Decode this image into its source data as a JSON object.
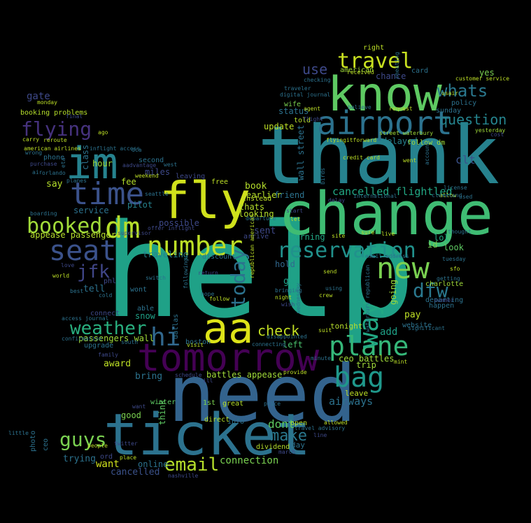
{
  "words": [
    {
      "text": "help",
      "color": "#1fa187"
    },
    {
      "text": "thank",
      "color": "#26828e"
    },
    {
      "text": "need",
      "color": "#33638d"
    },
    {
      "text": "change",
      "color": "#3fbc73"
    },
    {
      "text": "ticket",
      "color": "#2c728e"
    },
    {
      "text": "fly",
      "color": "#d0e11c"
    },
    {
      "text": "know",
      "color": "#5ec962"
    },
    {
      "text": "tomorrow",
      "color": "#440154"
    },
    {
      "text": "im",
      "color": "#26828e"
    },
    {
      "text": "aa",
      "color": "#dde318"
    },
    {
      "text": "airport",
      "color": "#2c728e"
    },
    {
      "text": "time",
      "color": "#3b528b"
    },
    {
      "text": "plane",
      "color": "#35b779"
    },
    {
      "text": "new",
      "color": "#7ad151"
    },
    {
      "text": "number",
      "color": "#bddf26"
    },
    {
      "text": "dm",
      "color": "#b5de2b"
    },
    {
      "text": "seat",
      "color": "#3b528b"
    },
    {
      "text": "bag",
      "color": "#1f988b"
    },
    {
      "text": "reservation",
      "color": "#21918c"
    },
    {
      "text": "travel",
      "color": "#c8e020"
    },
    {
      "text": "way",
      "color": "#22a884"
    },
    {
      "text": "booked",
      "color": "#a0da39"
    },
    {
      "text": "flying",
      "color": "#46327e"
    },
    {
      "text": "weather",
      "color": "#29af7f"
    },
    {
      "text": "email",
      "color": "#b5de2b"
    },
    {
      "text": "guys",
      "color": "#7ad151"
    },
    {
      "text": "hi",
      "color": "#31688e"
    },
    {
      "text": "today",
      "color": "#2c728e"
    },
    {
      "text": "dfw",
      "color": "#2a788e"
    },
    {
      "text": "whats",
      "color": "#2a788e"
    },
    {
      "text": "question",
      "color": "#25848e"
    },
    {
      "text": "jfk",
      "color": "#404688"
    },
    {
      "text": "check",
      "color": "#c2df23"
    },
    {
      "text": "make",
      "color": "#2a788e"
    },
    {
      "text": "use",
      "color": "#3e4989"
    },
    {
      "text": "cancelled flightled",
      "color": "#22a884"
    },
    {
      "text": "airways",
      "color": "#2c728e"
    },
    {
      "text": "clt",
      "color": "#3b528b"
    },
    {
      "text": "dont",
      "color": "#5ec962"
    },
    {
      "text": "connection",
      "color": "#7ad151"
    },
    {
      "text": "passengers wall",
      "color": "#a0da39"
    },
    {
      "text": "hold",
      "color": "#31688e"
    },
    {
      "text": "gate",
      "color": "#3e4989"
    },
    {
      "text": "book",
      "color": "#b5de2b"
    },
    {
      "text": "sent",
      "color": "#3e4989"
    },
    {
      "text": "morning",
      "color": "#22a884"
    },
    {
      "text": "got",
      "color": "#1fa187"
    },
    {
      "text": "say",
      "color": "#b5de2b"
    },
    {
      "text": "want",
      "color": "#d0e11c"
    },
    {
      "text": "trying",
      "color": "#2c728e"
    },
    {
      "text": "cancelled",
      "color": "#3b528b"
    },
    {
      "text": "online",
      "color": "#2c728e"
    },
    {
      "text": "bring",
      "color": "#2c728e"
    },
    {
      "text": "award",
      "color": "#bddf26"
    },
    {
      "text": "snow",
      "color": "#1fa187"
    },
    {
      "text": "tell",
      "color": "#2c728e"
    },
    {
      "text": "pay",
      "color": "#bddf26"
    },
    {
      "text": "add",
      "color": "#1fa187"
    },
    {
      "text": "hour",
      "color": "#9fda3a"
    },
    {
      "text": "fee",
      "color": "#b5de2b"
    },
    {
      "text": "service",
      "color": "#2c728e"
    },
    {
      "text": "miles",
      "color": "#3e4989"
    },
    {
      "text": "traveling",
      "color": "#26828e"
    },
    {
      "text": "look",
      "color": "#5ec962"
    },
    {
      "text": "left",
      "color": "#4ac16d"
    },
    {
      "text": "ceo battles",
      "color": "#a0da39"
    },
    {
      "text": "battles appease",
      "color": "#a0da39"
    },
    {
      "text": "appease passengers",
      "color": "#b5de2b"
    },
    {
      "text": "leave",
      "color": "#bddf26"
    },
    {
      "text": "lol",
      "color": "#22a884"
    },
    {
      "text": "id",
      "color": "#7ad151"
    },
    {
      "text": "good",
      "color": "#7ad151"
    },
    {
      "text": "day",
      "color": "#2c728e"
    },
    {
      "text": "yes",
      "color": "#7ad151"
    },
    {
      "text": "tonight",
      "color": "#b5de2b"
    },
    {
      "text": "update",
      "color": "#bddf26"
    },
    {
      "text": "looking",
      "color": "#b5de2b"
    },
    {
      "text": "trip",
      "color": "#9fda3a"
    },
    {
      "text": "friend",
      "color": "#2c728e"
    },
    {
      "text": "possible",
      "color": "#3e4989"
    },
    {
      "text": "status",
      "color": "#2c728e"
    },
    {
      "text": "wall street",
      "color": "#2c728e"
    },
    {
      "text": "thats",
      "color": "#b5de2b"
    },
    {
      "text": "pilot",
      "color": "#26828e"
    },
    {
      "text": "class",
      "color": "#2c728e"
    },
    {
      "text": "delayed",
      "color": "#26828e"
    },
    {
      "text": "think",
      "color": "#5ec962"
    },
    {
      "text": "going",
      "color": "#9fda3a"
    },
    {
      "text": "chance",
      "color": "#3e4989"
    },
    {
      "text": "earlier",
      "color": "#b5de2b"
    },
    {
      "text": "american",
      "color": "#9fda3a"
    },
    {
      "text": "booking problems",
      "color": "#b5de2b"
    },
    {
      "text": "phone",
      "color": "#2c728e"
    },
    {
      "text": "second",
      "color": "#2c728e"
    },
    {
      "text": "leaving",
      "color": "#3e4989"
    },
    {
      "text": "free",
      "color": "#bddf26"
    },
    {
      "text": "instead",
      "color": "#bddf26"
    },
    {
      "text": "arrive",
      "color": "#3e4989"
    },
    {
      "text": "website",
      "color": "#2c728e"
    },
    {
      "text": "departing",
      "color": "#2c728e"
    },
    {
      "text": "charlotte",
      "color": "#9fda3a"
    },
    {
      "text": "happen",
      "color": "#2c728e"
    },
    {
      "text": "policy",
      "color": "#2c728e"
    },
    {
      "text": "sunday",
      "color": "#2c728e"
    },
    {
      "text": "wife",
      "color": "#7ad151"
    },
    {
      "text": "told",
      "color": "#b5de2b"
    },
    {
      "text": "follow dm",
      "color": "#9fda3a"
    },
    {
      "text": "card",
      "color": "#2c728e"
    },
    {
      "text": "right",
      "color": "#bddf26"
    },
    {
      "text": "able",
      "color": "#2c728e"
    },
    {
      "text": "wont",
      "color": "#2c728e"
    },
    {
      "text": "phl",
      "color": "#3e4989"
    },
    {
      "text": "dallas",
      "color": "#2c728e"
    },
    {
      "text": "upgrade",
      "color": "#2c728e"
    },
    {
      "text": "info",
      "color": "#2c728e"
    },
    {
      "text": "open",
      "color": "#b5de2b"
    },
    {
      "text": "dividend",
      "color": "#b5de2b"
    },
    {
      "text": "ord",
      "color": "#3e4989"
    },
    {
      "text": "winter",
      "color": "#5ec962"
    },
    {
      "text": "1st",
      "color": "#7ad151"
    },
    {
      "text": "discount",
      "color": "#2c728e"
    },
    {
      "text": "connect",
      "color": "#3e4989"
    },
    {
      "text": "boston",
      "color": "#2c728e"
    },
    {
      "text": "direct",
      "color": "#b5de2b"
    },
    {
      "text": "ceo",
      "color": "#2c728e"
    },
    {
      "text": "photo",
      "color": "#2c728e"
    },
    {
      "text": "great",
      "color": "#b5de2b"
    },
    {
      "text": "yesterday",
      "color": "#9fda3a"
    },
    {
      "text": "customer service",
      "color": "#bddf26"
    },
    {
      "text": "request",
      "color": "#bddf26"
    },
    {
      "text": "believe",
      "color": "#2c728e"
    },
    {
      "text": "street waterbury",
      "color": "#9fda3a"
    },
    {
      "text": "flyingitforward",
      "color": "#bddf26"
    },
    {
      "text": "credit card",
      "color": "#bddf26"
    },
    {
      "text": "sure",
      "color": "#b5de2b"
    },
    {
      "text": "site",
      "color": "#bddf26"
    },
    {
      "text": "nashville",
      "color": "#3e4989"
    },
    {
      "text": "twitter",
      "color": "#3e4989"
    },
    {
      "text": "people",
      "color": "#bddf26"
    },
    {
      "text": "march",
      "color": "#3e4989"
    },
    {
      "text": "line",
      "color": "#3e4989"
    },
    {
      "text": "allowed",
      "color": "#bddf26"
    },
    {
      "text": "schedule",
      "color": "#3e4989"
    },
    {
      "text": "visit",
      "color": "#bddf26"
    },
    {
      "text": "provide",
      "color": "#bddf26"
    },
    {
      "text": "used",
      "color": "#2c728e"
    },
    {
      "text": "allow",
      "color": "#bddf26"
    },
    {
      "text": "cost",
      "color": "#3e4989"
    },
    {
      "text": "thought",
      "color": "#2c728e"
    },
    {
      "text": "international",
      "color": "#2c728e"
    },
    {
      "text": "email address",
      "color": "#2c728e"
    },
    {
      "text": "significant",
      "color": "#2c728e"
    },
    {
      "text": "american airlines",
      "color": "#bddf26"
    },
    {
      "text": "digital journal",
      "color": "#2c728e"
    },
    {
      "text": "traveler",
      "color": "#2c728e"
    },
    {
      "text": "agent",
      "color": "#bddf26"
    },
    {
      "text": "flight",
      "color": "#3e4989"
    },
    {
      "text": "checking",
      "color": "#2c728e"
    },
    {
      "text": "received",
      "color": "#bddf26"
    },
    {
      "text": "monday",
      "color": "#bddf26"
    },
    {
      "text": "reroute",
      "color": "#bddf26"
    },
    {
      "text": "carry",
      "color": "#bddf26"
    },
    {
      "text": "ago",
      "color": "#bddf26"
    },
    {
      "text": "final",
      "color": "#3e4989"
    },
    {
      "text": "world",
      "color": "#bddf26"
    },
    {
      "text": "confirmation",
      "color": "#2c728e"
    },
    {
      "text": "access journal",
      "color": "#2c728e"
    },
    {
      "text": "cold",
      "color": "#2c728e"
    },
    {
      "text": "south",
      "color": "#2c728e"
    },
    {
      "text": "family",
      "color": "#3e4989"
    },
    {
      "text": "want",
      "color": "#3e4989"
    },
    {
      "text": "place",
      "color": "#bddf26"
    },
    {
      "text": "minute",
      "color": "#2c728e"
    },
    {
      "text": "suit",
      "color": "#bddf26"
    },
    {
      "text": "wish",
      "color": "#3e4989"
    },
    {
      "text": "night",
      "color": "#bddf26"
    },
    {
      "text": "crew",
      "color": "#bddf26"
    },
    {
      "text": "send",
      "color": "#bddf26"
    },
    {
      "text": "using",
      "color": "#2c728e"
    },
    {
      "text": "hope",
      "color": "#2c728e"
    },
    {
      "text": "follow",
      "color": "#bddf26"
    },
    {
      "text": "bringing",
      "color": "#2c728e"
    },
    {
      "text": "disappointed",
      "color": "#2c728e"
    },
    {
      "text": "connecting",
      "color": "#2c728e"
    },
    {
      "text": "offer inflight",
      "color": "#3e4989"
    },
    {
      "text": "supervisor",
      "color": "#3e4989"
    },
    {
      "text": "start",
      "color": "#3e4989"
    },
    {
      "text": "let",
      "color": "#bddf26"
    },
    {
      "text": "sfo",
      "color": "#bddf26"
    },
    {
      "text": "getting",
      "color": "#2c728e"
    },
    {
      "text": "summer",
      "color": "#3e4989"
    },
    {
      "text": "mint",
      "color": "#bddf26"
    },
    {
      "text": "ill",
      "color": "#3e4989"
    },
    {
      "text": "little",
      "color": "#2c728e"
    },
    {
      "text": "travel advisory",
      "color": "#2c728e"
    },
    {
      "text": "price",
      "color": "#2c728e"
    },
    {
      "text": "boarding",
      "color": "#2c728e"
    },
    {
      "text": "inflight access",
      "color": "#2c728e"
    },
    {
      "text": "dca",
      "color": "#2c728e"
    },
    {
      "text": "aadvantage",
      "color": "#3e4989"
    },
    {
      "text": "west",
      "color": "#2c728e"
    },
    {
      "text": "weekend",
      "color": "#bddf26"
    },
    {
      "text": "departure",
      "color": "#2c728e"
    },
    {
      "text": "license",
      "color": "#2c728e"
    },
    {
      "text": "cleveland",
      "color": "#2c728e"
    },
    {
      "text": "account",
      "color": "#2c728e"
    },
    {
      "text": "went",
      "color": "#bddf26"
    },
    {
      "text": "live",
      "color": "#bddf26"
    },
    {
      "text": "republican american",
      "color": "#bddf26"
    },
    {
      "text": "waterbury republican",
      "color": "#2c728e"
    },
    {
      "text": "following",
      "color": "#2c728e"
    },
    {
      "text": "wednesday",
      "color": "#2c728e"
    },
    {
      "text": "delay",
      "color": "#3e4989"
    },
    {
      "text": "birds",
      "color": "#2c728e"
    },
    {
      "text": "purchase",
      "color": "#3e4989"
    },
    {
      "text": "orlando",
      "color": "#2c728e"
    },
    {
      "text": "wrong",
      "color": "#2c728e"
    },
    {
      "text": "air",
      "color": "#2c728e"
    },
    {
      "text": "cheating",
      "color": "#2c728e"
    },
    {
      "text": "switch",
      "color": "#2c728e"
    },
    {
      "text": "return",
      "color": "#3e4989"
    },
    {
      "text": "love",
      "color": "#3e4989"
    },
    {
      "text": "best",
      "color": "#2c728e"
    },
    {
      "text": "seattle",
      "color": "#2c728e"
    },
    {
      "text": "usair",
      "color": "#bddf26"
    },
    {
      "text": "tuesday",
      "color": "#2c728e"
    },
    {
      "text": "eta",
      "color": "#2c728e"
    },
    {
      "text": "planes",
      "color": "#2c728e"
    }
  ]
}
